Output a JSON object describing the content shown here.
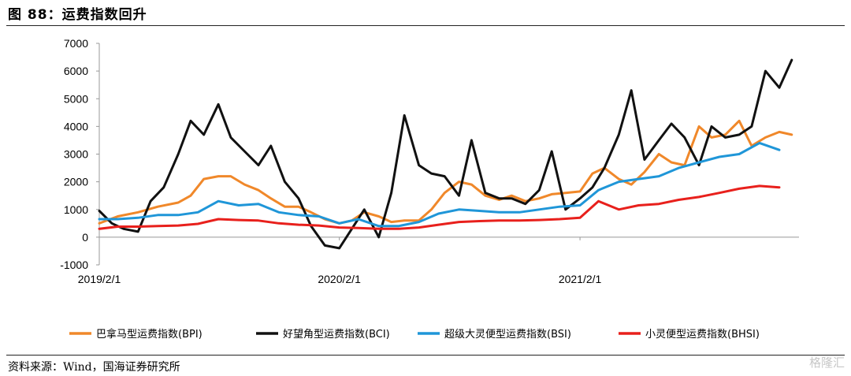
{
  "figure": {
    "title": "图 88：运费指数回升",
    "source": "资料来源：Wind，国海证券研究所",
    "watermark": "格隆汇"
  },
  "chart_data": {
    "type": "line",
    "title": "",
    "xlabel": "",
    "ylabel": "",
    "ylim": [
      -1000,
      7000
    ],
    "yticks": [
      -1000,
      0,
      1000,
      2000,
      3000,
      4000,
      5000,
      6000,
      7000
    ],
    "x_range": [
      "2019-02-01",
      "2021-12-31"
    ],
    "xticks": [
      "2019/2/1",
      "2020/2/1",
      "2021/2/1"
    ],
    "legend_position": "bottom",
    "grid": false,
    "series": [
      {
        "name": "巴拿马型运费指数(BPI)",
        "color": "#f0882a",
        "x": [
          "2019-02-01",
          "2019-03-01",
          "2019-04-01",
          "2019-05-01",
          "2019-06-01",
          "2019-06-20",
          "2019-07-10",
          "2019-08-01",
          "2019-08-20",
          "2019-09-10",
          "2019-10-01",
          "2019-10-20",
          "2019-11-10",
          "2019-12-01",
          "2019-12-20",
          "2020-01-10",
          "2020-02-01",
          "2020-02-20",
          "2020-03-10",
          "2020-04-01",
          "2020-04-20",
          "2020-05-10",
          "2020-06-01",
          "2020-06-20",
          "2020-07-10",
          "2020-08-01",
          "2020-08-20",
          "2020-09-10",
          "2020-10-01",
          "2020-10-20",
          "2020-11-10",
          "2020-12-01",
          "2020-12-20",
          "2021-01-10",
          "2021-02-01",
          "2021-02-20",
          "2021-03-10",
          "2021-04-01",
          "2021-04-20",
          "2021-05-10",
          "2021-06-01",
          "2021-06-20",
          "2021-07-10",
          "2021-08-01",
          "2021-08-20",
          "2021-09-10",
          "2021-10-01",
          "2021-10-20",
          "2021-11-10",
          "2021-12-01",
          "2021-12-20"
        ],
        "values": [
          500,
          750,
          900,
          1100,
          1250,
          1500,
          2100,
          2200,
          2200,
          1900,
          1700,
          1400,
          1100,
          1100,
          900,
          650,
          500,
          600,
          900,
          750,
          550,
          600,
          600,
          1000,
          1600,
          2000,
          1900,
          1500,
          1350,
          1500,
          1300,
          1400,
          1550,
          1600,
          1650,
          2300,
          2500,
          2100,
          1900,
          2350,
          3000,
          2700,
          2600,
          4000,
          3600,
          3700,
          4200,
          3300,
          3600,
          3800,
          3700
        ]
      },
      {
        "name": "好望角型运费指数(BCI)",
        "color": "#111111",
        "x": [
          "2019-02-01",
          "2019-02-20",
          "2019-03-10",
          "2019-04-01",
          "2019-04-20",
          "2019-05-10",
          "2019-06-01",
          "2019-06-20",
          "2019-07-10",
          "2019-08-01",
          "2019-08-20",
          "2019-09-10",
          "2019-10-01",
          "2019-10-20",
          "2019-11-10",
          "2019-12-01",
          "2019-12-20",
          "2020-01-10",
          "2020-02-01",
          "2020-02-20",
          "2020-03-10",
          "2020-04-01",
          "2020-04-20",
          "2020-05-10",
          "2020-06-01",
          "2020-06-20",
          "2020-07-10",
          "2020-08-01",
          "2020-08-20",
          "2020-09-10",
          "2020-10-01",
          "2020-10-20",
          "2020-11-10",
          "2020-12-01",
          "2020-12-20",
          "2021-01-10",
          "2021-02-01",
          "2021-02-20",
          "2021-03-10",
          "2021-04-01",
          "2021-04-20",
          "2021-05-10",
          "2021-06-01",
          "2021-06-20",
          "2021-07-10",
          "2021-08-01",
          "2021-08-20",
          "2021-09-10",
          "2021-10-01",
          "2021-10-20",
          "2021-11-10",
          "2021-12-01",
          "2021-12-20"
        ],
        "values": [
          950,
          500,
          300,
          200,
          1300,
          1800,
          3000,
          4200,
          3700,
          4800,
          3600,
          3100,
          2600,
          3300,
          2000,
          1400,
          400,
          -300,
          -400,
          300,
          1000,
          0,
          1600,
          4400,
          2600,
          2300,
          2200,
          1500,
          3500,
          1600,
          1400,
          1400,
          1200,
          1700,
          3100,
          1000,
          1400,
          1800,
          2500,
          3700,
          5300,
          2800,
          3500,
          4100,
          3600,
          2600,
          4000,
          3600,
          3700,
          4000,
          6000,
          5400,
          6400
        ]
      },
      {
        "name": "超级大灵便型运费指数(BSI)",
        "color": "#1f96d8",
        "x": [
          "2019-02-01",
          "2019-03-01",
          "2019-04-01",
          "2019-05-01",
          "2019-06-01",
          "2019-07-01",
          "2019-08-01",
          "2019-09-01",
          "2019-10-01",
          "2019-11-01",
          "2019-12-01",
          "2020-01-01",
          "2020-02-01",
          "2020-03-01",
          "2020-04-01",
          "2020-05-01",
          "2020-06-01",
          "2020-07-01",
          "2020-08-01",
          "2020-09-01",
          "2020-10-01",
          "2020-11-01",
          "2020-12-01",
          "2021-01-01",
          "2021-02-01",
          "2021-03-01",
          "2021-04-01",
          "2021-05-01",
          "2021-06-01",
          "2021-07-01",
          "2021-08-01",
          "2021-09-01",
          "2021-10-01",
          "2021-11-01",
          "2021-12-01"
        ],
        "values": [
          650,
          650,
          700,
          800,
          800,
          900,
          1300,
          1150,
          1200,
          900,
          800,
          750,
          500,
          650,
          400,
          400,
          550,
          850,
          1000,
          950,
          900,
          900,
          1000,
          1100,
          1150,
          1700,
          2000,
          2100,
          2200,
          2500,
          2700,
          2900,
          3000,
          3400,
          3150
        ]
      },
      {
        "name": "小灵便型运费指数(BHSI)",
        "color": "#e8201c",
        "x": [
          "2019-02-01",
          "2019-03-01",
          "2019-04-01",
          "2019-05-01",
          "2019-06-01",
          "2019-07-01",
          "2019-08-01",
          "2019-09-01",
          "2019-10-01",
          "2019-11-01",
          "2019-12-01",
          "2020-01-01",
          "2020-02-01",
          "2020-03-01",
          "2020-04-01",
          "2020-05-01",
          "2020-06-01",
          "2020-07-01",
          "2020-08-01",
          "2020-09-01",
          "2020-10-01",
          "2020-11-01",
          "2020-12-01",
          "2021-01-01",
          "2021-02-01",
          "2021-03-01",
          "2021-04-01",
          "2021-05-01",
          "2021-06-01",
          "2021-07-01",
          "2021-08-01",
          "2021-09-01",
          "2021-10-01",
          "2021-11-01",
          "2021-12-01"
        ],
        "values": [
          300,
          380,
          380,
          400,
          420,
          480,
          650,
          620,
          600,
          500,
          450,
          420,
          350,
          330,
          300,
          300,
          350,
          450,
          550,
          580,
          600,
          600,
          620,
          650,
          700,
          1300,
          1000,
          1150,
          1200,
          1350,
          1450,
          1600,
          1750,
          1850,
          1800
        ]
      }
    ]
  }
}
